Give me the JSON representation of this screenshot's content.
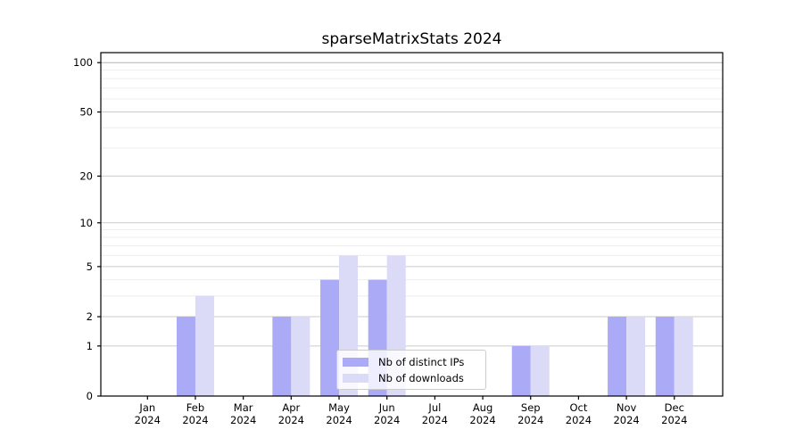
{
  "title": "sparseMatrixStats 2024",
  "legend": {
    "items": [
      {
        "label": "Nb of distinct IPs",
        "color": "#aaaaf7"
      },
      {
        "label": "Nb of downloads",
        "color": "#dbdbf8"
      }
    ]
  },
  "chart_data": {
    "type": "bar",
    "title": "sparseMatrixStats 2024",
    "xlabel": "",
    "ylabel": "",
    "y_scale": "log1p",
    "grid": true,
    "legend_position": "lower center inside",
    "categories": [
      "Jan 2024",
      "Feb 2024",
      "Mar 2024",
      "Apr 2024",
      "May 2024",
      "Jun 2024",
      "Jul 2024",
      "Aug 2024",
      "Sep 2024",
      "Oct 2024",
      "Nov 2024",
      "Dec 2024"
    ],
    "series": [
      {
        "name": "Nb of distinct IPs",
        "color": "#aaaaf7",
        "values": [
          0,
          2,
          0,
          2,
          4,
          4,
          0,
          0,
          1,
          0,
          2,
          2
        ]
      },
      {
        "name": "Nb of downloads",
        "color": "#dbdbf8",
        "values": [
          0,
          3,
          0,
          2,
          6,
          6,
          0,
          0,
          1,
          0,
          2,
          2
        ]
      }
    ],
    "y_ticks": [
      0,
      1,
      2,
      5,
      10,
      20,
      50,
      100
    ],
    "y_minor_ticks": [
      3,
      4,
      6,
      7,
      8,
      9,
      30,
      40,
      60,
      70,
      80,
      90
    ],
    "ylim": [
      0,
      115
    ]
  }
}
